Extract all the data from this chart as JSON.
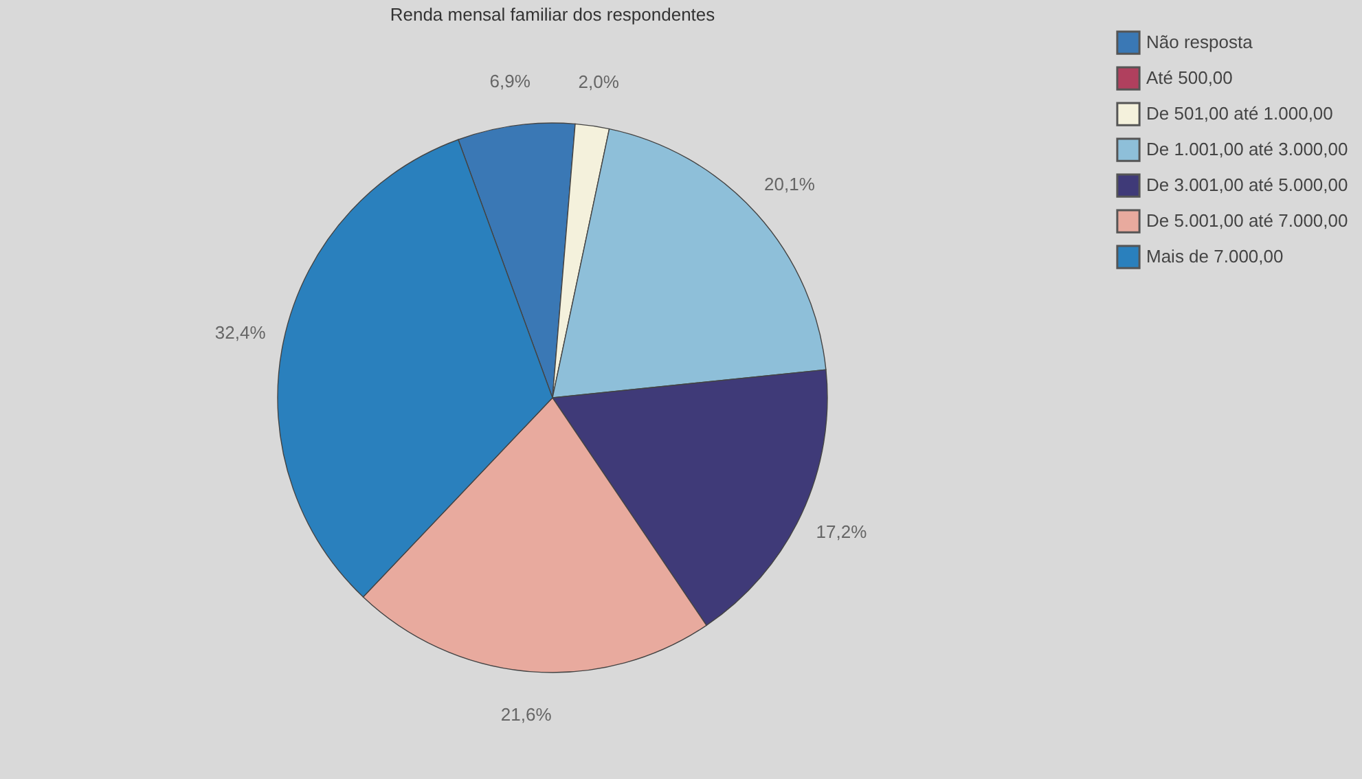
{
  "chart_data": {
    "type": "pie",
    "title": "Renda mensal familiar dos respondentes",
    "categories": [
      "Não resposta",
      "Até 500,00",
      "De 501,00 até 1.000,00",
      "De 1.001,00 até 3.000,00",
      "De 3.001,00 até 5.000,00",
      "De 5.001,00 até 7.000,00",
      "Mais de 7.000,00"
    ],
    "values": [
      6.9,
      0,
      2.0,
      20.1,
      17.2,
      21.6,
      32.4
    ],
    "value_labels": [
      "6,9%",
      null,
      "2,0%",
      "20,1%",
      "17,2%",
      "21,6%",
      "32,4%"
    ],
    "colors": [
      "#3a78b5",
      "#b0405e",
      "#f4f1dc",
      "#8ebfd9",
      "#3f3a78",
      "#e8aa9e",
      "#2a80bd"
    ],
    "legend": "right"
  }
}
